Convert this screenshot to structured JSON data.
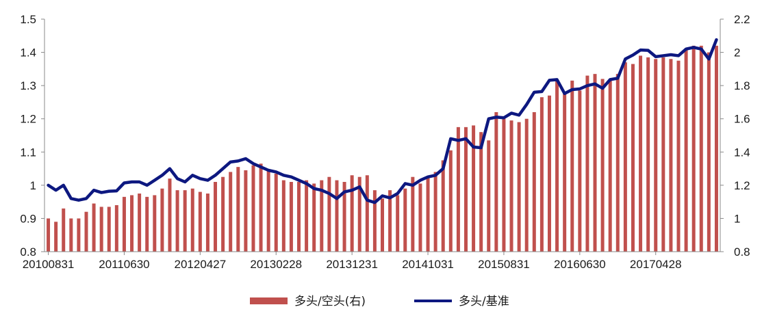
{
  "chart_data": {
    "type": "bar+line",
    "title": "",
    "xlabel": "",
    "ylabel_left": "",
    "ylabel_right": "",
    "left_axis": {
      "min": 0.8,
      "max": 1.5,
      "ticks": [
        "0.8",
        "0.9",
        "1",
        "1.1",
        "1.2",
        "1.3",
        "1.4",
        "1.5"
      ]
    },
    "right_axis": {
      "min": 0.8,
      "max": 2.2,
      "ticks": [
        "0.8",
        "1",
        "1.2",
        "1.4",
        "1.6",
        "1.8",
        "2",
        "2.2"
      ]
    },
    "x_tick_labels": [
      "20100831",
      "20110630",
      "20120427",
      "20130228",
      "20131231",
      "20141031",
      "20150831",
      "20160630",
      "20170428"
    ],
    "x_tick_every": 10,
    "grid": false,
    "legend_position": "bottom",
    "series": [
      {
        "name": "多头/空头(右)",
        "type": "bar",
        "axis": "right",
        "color": "#c0504d",
        "values": [
          1.0,
          0.98,
          1.06,
          1.0,
          1.0,
          1.04,
          1.09,
          1.07,
          1.07,
          1.08,
          1.13,
          1.14,
          1.15,
          1.13,
          1.14,
          1.18,
          1.24,
          1.17,
          1.17,
          1.18,
          1.16,
          1.15,
          1.22,
          1.25,
          1.28,
          1.31,
          1.29,
          1.32,
          1.33,
          1.29,
          1.27,
          1.23,
          1.22,
          1.22,
          1.23,
          1.21,
          1.23,
          1.25,
          1.23,
          1.22,
          1.26,
          1.25,
          1.26,
          1.17,
          1.12,
          1.17,
          1.14,
          1.18,
          1.25,
          1.21,
          1.25,
          1.28,
          1.35,
          1.41,
          1.55,
          1.55,
          1.56,
          1.52,
          1.47,
          1.64,
          1.6,
          1.59,
          1.58,
          1.6,
          1.64,
          1.73,
          1.74,
          1.83,
          1.76,
          1.83,
          1.77,
          1.86,
          1.87,
          1.84,
          1.84,
          1.87,
          1.94,
          1.93,
          1.98,
          1.97,
          1.96,
          1.97,
          1.96,
          1.95,
          2.02,
          2.04,
          2.04,
          2.0,
          2.04
        ]
      },
      {
        "name": "多头/基准",
        "type": "line",
        "axis": "left",
        "color": "#0d1880",
        "values": [
          1.0,
          0.985,
          1.0,
          0.96,
          0.955,
          0.96,
          0.985,
          0.978,
          0.982,
          0.983,
          1.007,
          1.01,
          1.01,
          1.0,
          1.015,
          1.03,
          1.05,
          1.02,
          1.01,
          1.03,
          1.02,
          1.015,
          1.03,
          1.05,
          1.07,
          1.073,
          1.08,
          1.065,
          1.055,
          1.045,
          1.04,
          1.03,
          1.025,
          1.015,
          1.005,
          0.99,
          0.985,
          0.975,
          0.96,
          0.98,
          0.985,
          0.995,
          0.955,
          0.948,
          0.968,
          0.962,
          0.975,
          1.005,
          1.0,
          1.015,
          1.025,
          1.03,
          1.05,
          1.14,
          1.135,
          1.14,
          1.115,
          1.113,
          1.2,
          1.205,
          1.203,
          1.217,
          1.211,
          1.243,
          1.28,
          1.282,
          1.316,
          1.318,
          1.276,
          1.288,
          1.29,
          1.3,
          1.305,
          1.292,
          1.318,
          1.322,
          1.38,
          1.392,
          1.407,
          1.406,
          1.387,
          1.39,
          1.393,
          1.39,
          1.41,
          1.415,
          1.41,
          1.38,
          1.438
        ]
      }
    ]
  }
}
